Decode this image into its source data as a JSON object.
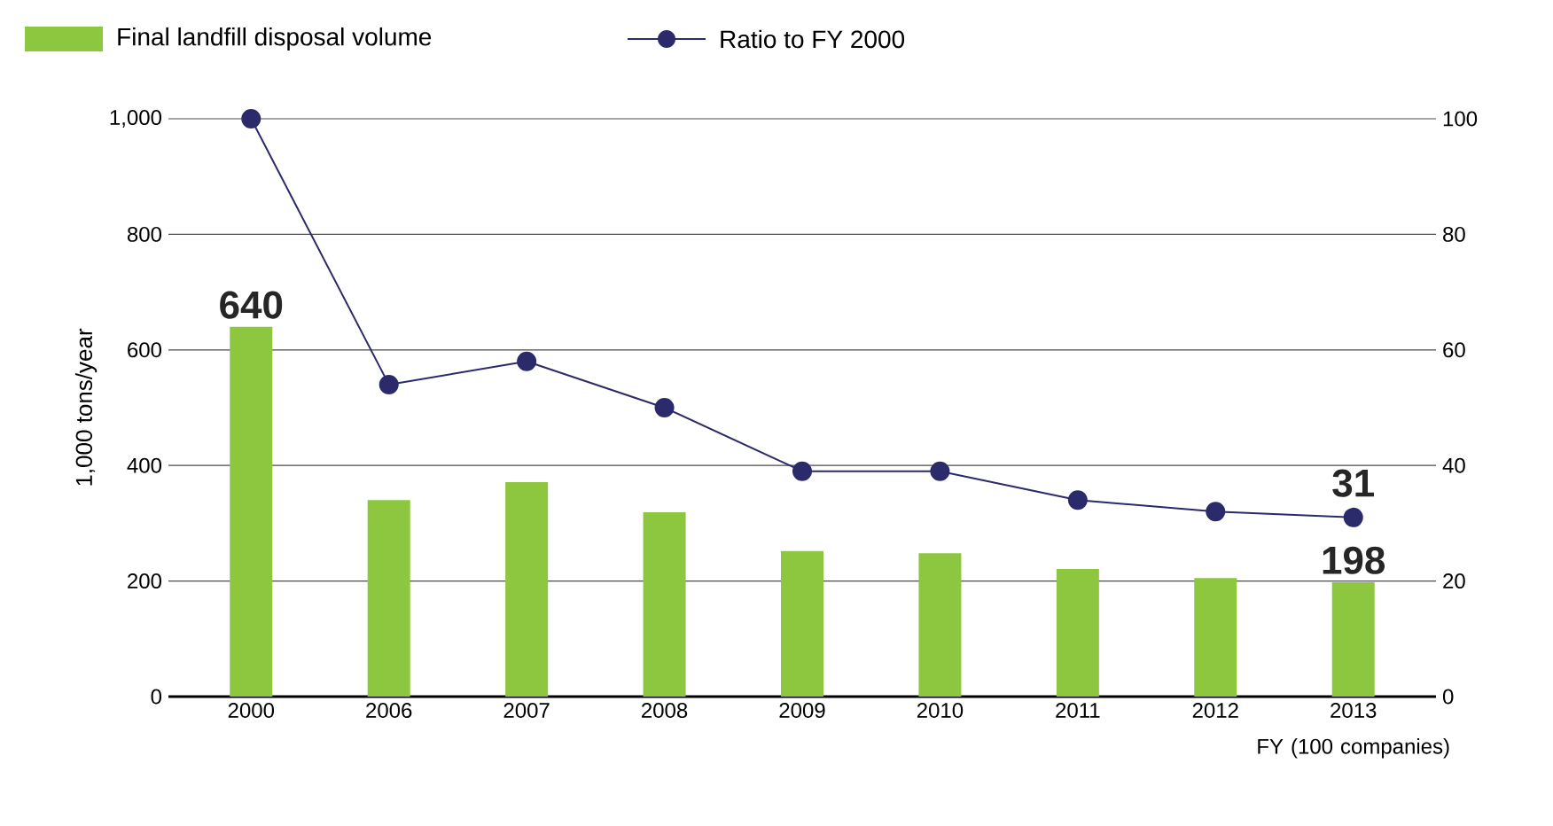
{
  "chart_data": {
    "type": "bar",
    "ylabel": "1,000 tons/year",
    "categories": [
      "2000",
      "2006",
      "2007",
      "2008",
      "2009",
      "2010",
      "2011",
      "2012",
      "2013"
    ],
    "series": [
      {
        "name": "Final landfill disposal volume",
        "color": "#8dc63f",
        "values": [
          640,
          340,
          371,
          319,
          252,
          248,
          221,
          205,
          198
        ],
        "value_labels": [
          "640",
          null,
          null,
          null,
          null,
          null,
          null,
          null,
          "198"
        ]
      },
      {
        "name": "Ratio to FY 2000",
        "type": "line",
        "axis": "y2",
        "color": "#2b2a6b",
        "values": [
          100,
          54,
          58,
          50,
          39,
          39,
          34,
          32,
          31
        ],
        "value_labels": [
          null,
          null,
          null,
          null,
          null,
          null,
          null,
          null,
          "31"
        ]
      }
    ],
    "ylim": [
      0,
      1000
    ],
    "yticks": [
      0,
      200,
      400,
      600,
      800,
      {
        "value": 1000,
        "label": "1,000"
      }
    ],
    "y2lim": [
      0,
      100
    ],
    "y2ticks": [
      0,
      20,
      40,
      60,
      80,
      100
    ],
    "grid": "y",
    "legend": "top left",
    "marker": "circle",
    "annotations": [
      "FY (100 companies)"
    ]
  }
}
